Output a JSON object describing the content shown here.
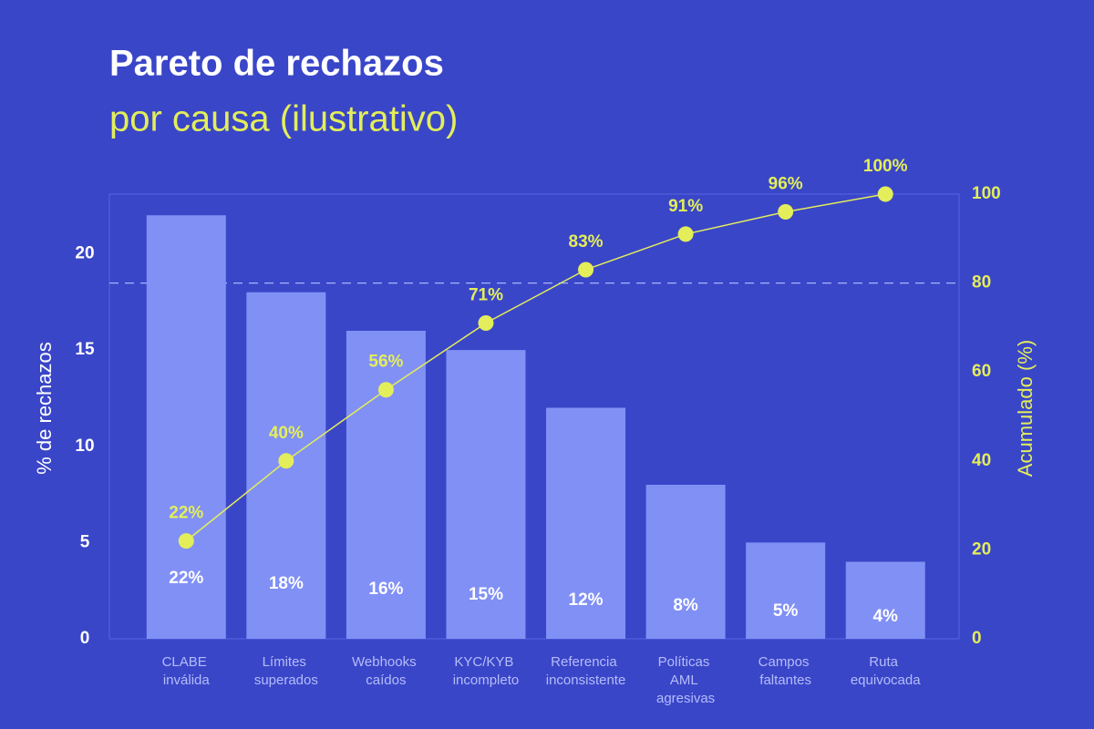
{
  "chart_data": {
    "type": "pareto",
    "title": "Pareto de rechazos",
    "subtitle": "por causa (ilustrativo)",
    "y_label": "% de rechazos",
    "y2_label": "Acumulado (%)",
    "categories": [
      "CLABE inválida",
      "Límites superados",
      "Webhooks caídos",
      "KYC/KYB incompleto",
      "Referencia inconsistente",
      "Políticas AML agresivas",
      "Campos faltantes",
      "Ruta equivocada"
    ],
    "series": [
      {
        "name": "% de rechazos",
        "type": "bar",
        "color": "#8190f5",
        "values": [
          22,
          18,
          16,
          15,
          12,
          8,
          5,
          4
        ],
        "value_labels": [
          "22%",
          "18%",
          "16%",
          "15%",
          "12%",
          "8%",
          "5%",
          "4%"
        ]
      },
      {
        "name": "Acumulado (%)",
        "type": "line",
        "axis": "y2",
        "color": "#e3ee5a",
        "values": [
          22,
          40,
          56,
          71,
          83,
          91,
          96,
          100
        ],
        "value_labels": [
          "22%",
          "40%",
          "56%",
          "71%",
          "83%",
          "91%",
          "96%",
          "100%"
        ]
      }
    ],
    "ylim": [
      0,
      23.1
    ],
    "yticks": [
      0,
      5,
      10,
      15,
      20
    ],
    "y2lim": [
      0,
      100
    ],
    "y2ticks": [
      0,
      20,
      40,
      60,
      80,
      100
    ],
    "y2_reference": 80
  }
}
